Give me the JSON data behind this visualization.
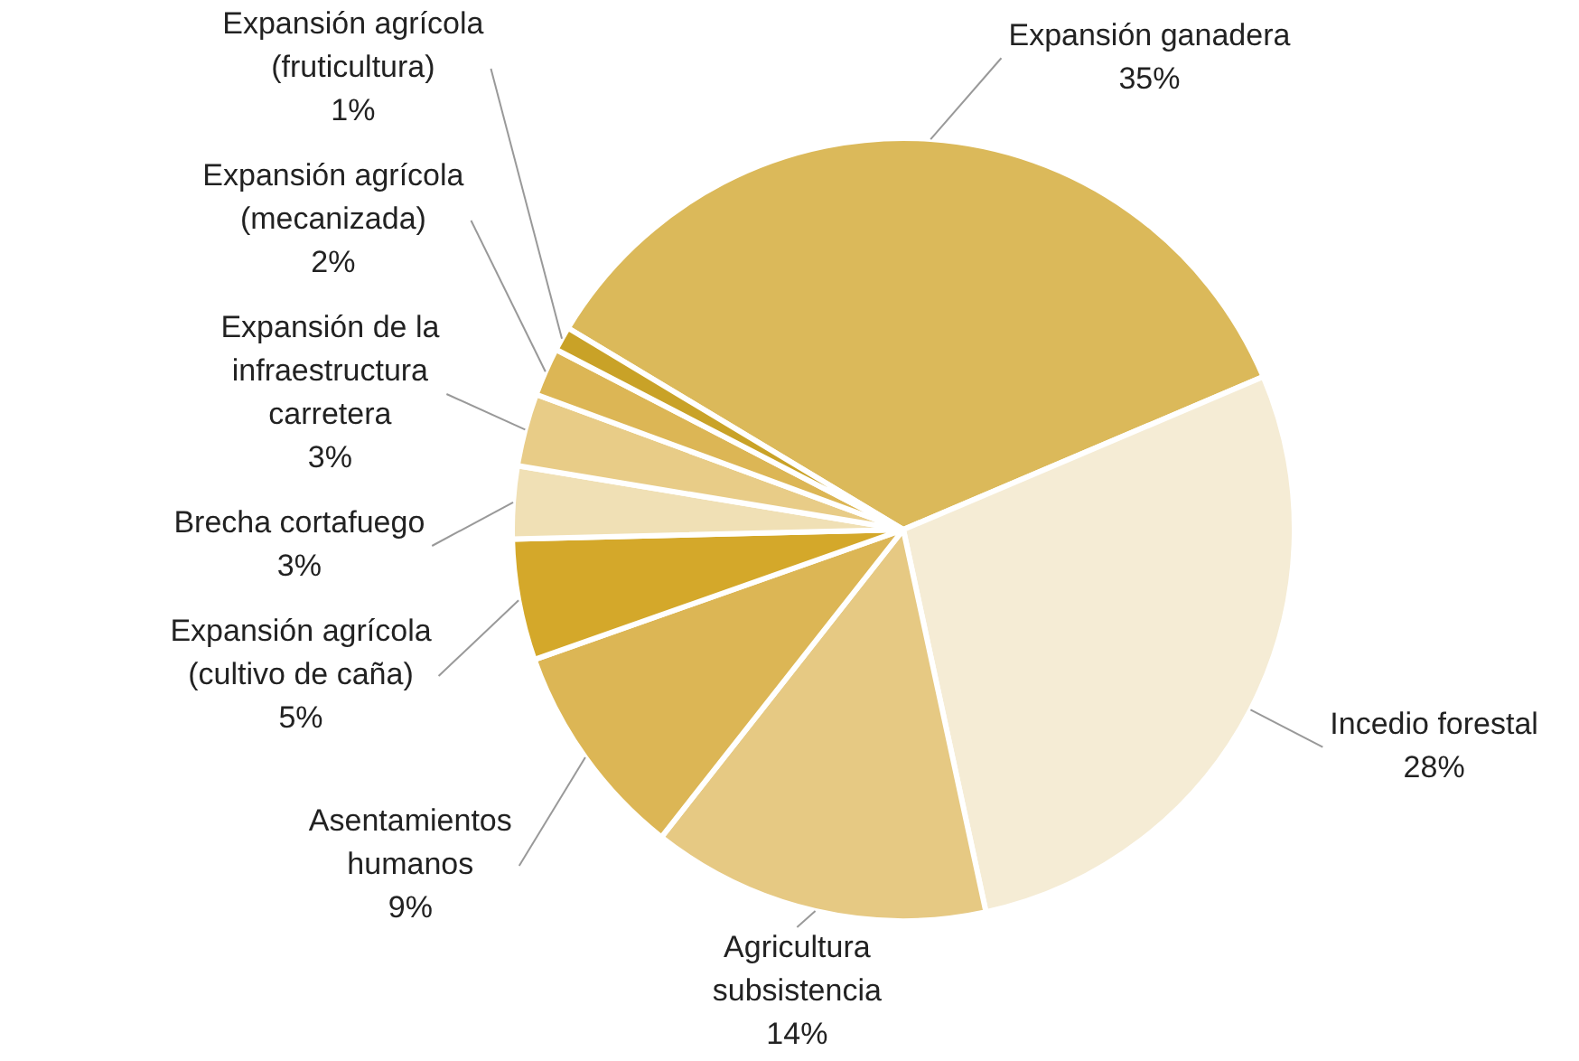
{
  "chart_data": {
    "type": "pie",
    "categories": [
      "Expansión ganadera",
      "Incedio forestal",
      "Agricultura subsistencia",
      "Asentamientos humanos",
      "Expansión agrícola (cultivo de caña)",
      "Brecha cortafuego",
      "Expansión de la infraestructura carretera",
      "Expansión agrícola (mecanizada)",
      "Expansión agrícola (fruticultura)"
    ],
    "values": [
      35,
      28,
      14,
      9,
      5,
      3,
      3,
      2,
      1
    ],
    "colors": [
      "#dbb95a",
      "#f5ecd5",
      "#e6c983",
      "#dcb655",
      "#d4a82a",
      "#f0e0b5",
      "#e8cc87",
      "#dcb655",
      "#c9a227"
    ],
    "value_labels": [
      "35%",
      "28%",
      "14%",
      "9%",
      "5%",
      "3%",
      "3%",
      "2%",
      "1%"
    ],
    "legend": false
  }
}
